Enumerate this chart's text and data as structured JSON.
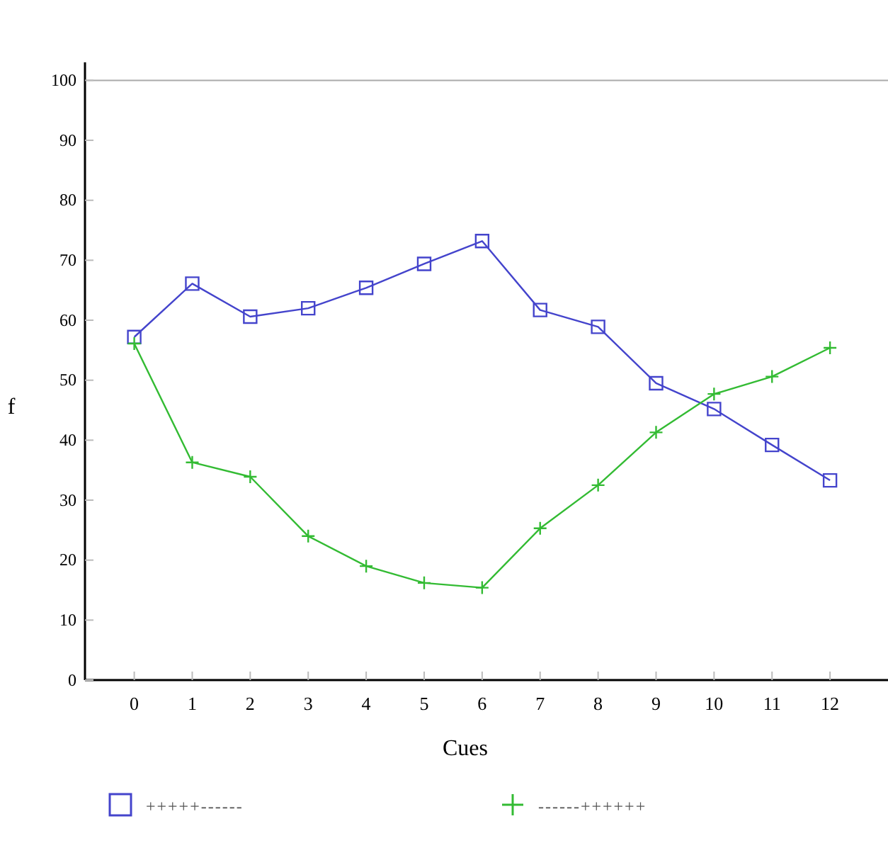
{
  "chart_data": {
    "type": "line",
    "xlabel": "Cues",
    "ylabel": "f",
    "x": [
      0,
      1,
      2,
      3,
      4,
      5,
      6,
      7,
      8,
      9,
      10,
      11,
      12
    ],
    "xlim": [
      -0.85,
      13
    ],
    "xticks": [
      0,
      1,
      2,
      3,
      4,
      5,
      6,
      7,
      8,
      9,
      10,
      11,
      12
    ],
    "ylim": [
      0,
      103
    ],
    "yticks": [
      0,
      10,
      20,
      30,
      40,
      50,
      60,
      70,
      80,
      90,
      100
    ],
    "ref_lines": [
      {
        "axis": "y",
        "value": 100,
        "color": "#aaaaaa"
      }
    ],
    "legend": "bottom",
    "grid": false,
    "series": [
      {
        "name": "+++++------",
        "color": "#4444cc",
        "marker": "square",
        "values": [
          57.2,
          66.1,
          60.6,
          62.0,
          65.4,
          69.4,
          73.2,
          61.7,
          58.9,
          49.5,
          45.2,
          39.2,
          33.3
        ]
      },
      {
        "name": "------++++++",
        "color": "#33bb33",
        "marker": "cross",
        "values": [
          56.1,
          36.3,
          33.9,
          24.0,
          19.0,
          16.2,
          15.4,
          25.3,
          32.5,
          41.3,
          47.7,
          50.6,
          55.4
        ]
      }
    ]
  }
}
